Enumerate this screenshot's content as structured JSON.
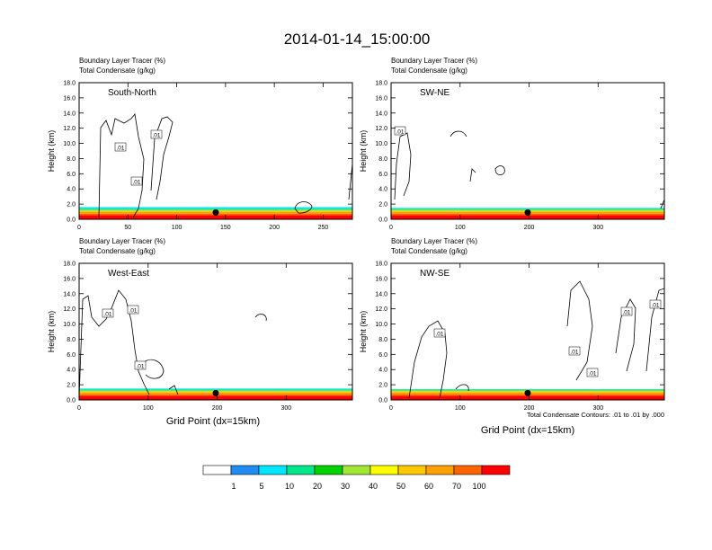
{
  "title": "2014-01-14_15:00:00",
  "colors": {
    "levels": [
      "#ffffff",
      "#1e8cf0",
      "#00e6ff",
      "#00e68c",
      "#00d200",
      "#a0e632",
      "#ffff00",
      "#ffc800",
      "#ffa000",
      "#ff6400",
      "#ff0000"
    ],
    "contour": "#000000",
    "background": "#ffffff"
  },
  "panel_header": {
    "line1": "Boundary Layer Tracer   (%)",
    "line2": "Total Condensate   (g/kg)"
  },
  "y_axis_label": "Height (km)",
  "x_axis_label": "Grid Point (dx=15km)",
  "contour_note": "Total Condensate Contours: .01 to .01 by .000",
  "contour_label": ".01",
  "colorbar": {
    "labels": [
      "1",
      "5",
      "10",
      "20",
      "30",
      "40",
      "50",
      "60",
      "70",
      "100"
    ]
  },
  "chart_data": [
    {
      "type": "heatmap",
      "name": "South-North",
      "xlim": [
        0,
        280
      ],
      "ylim": [
        0,
        18
      ],
      "xticks": [
        0,
        50,
        100,
        150,
        200,
        250
      ],
      "yticks": [
        "0.0",
        "2.0",
        "4.0",
        "6.0",
        "8.0",
        "10.0",
        "12.0",
        "14.0",
        "16.0",
        "18.0"
      ],
      "tracer_top_km": 1.6,
      "marker_grid_point": 140
    },
    {
      "type": "heatmap",
      "name": "SW-NE",
      "xlim": [
        0,
        396
      ],
      "ylim": [
        0,
        18
      ],
      "xticks": [
        0,
        100,
        200,
        300
      ],
      "yticks": [
        "0.0",
        "2.0",
        "4.0",
        "6.0",
        "8.0",
        "10.0",
        "12.0",
        "14.0",
        "16.0",
        "18.0"
      ],
      "tracer_top_km": 1.5,
      "marker_grid_point": 198
    },
    {
      "type": "heatmap",
      "name": "West-East",
      "xlim": [
        0,
        396
      ],
      "ylim": [
        0,
        18
      ],
      "xticks": [
        0,
        100,
        200,
        300
      ],
      "yticks": [
        "0.0",
        "2.0",
        "4.0",
        "6.0",
        "8.0",
        "10.0",
        "12.0",
        "14.0",
        "16.0",
        "18.0"
      ],
      "tracer_top_km": 1.5,
      "marker_grid_point": 198
    },
    {
      "type": "heatmap",
      "name": "NW-SE",
      "xlim": [
        0,
        396
      ],
      "ylim": [
        0,
        18
      ],
      "xticks": [
        0,
        100,
        200,
        300
      ],
      "yticks": [
        "0.0",
        "2.0",
        "4.0",
        "6.0",
        "8.0",
        "10.0",
        "12.0",
        "14.0",
        "16.0",
        "18.0"
      ],
      "tracer_top_km": 1.4,
      "marker_grid_point": 198
    }
  ]
}
